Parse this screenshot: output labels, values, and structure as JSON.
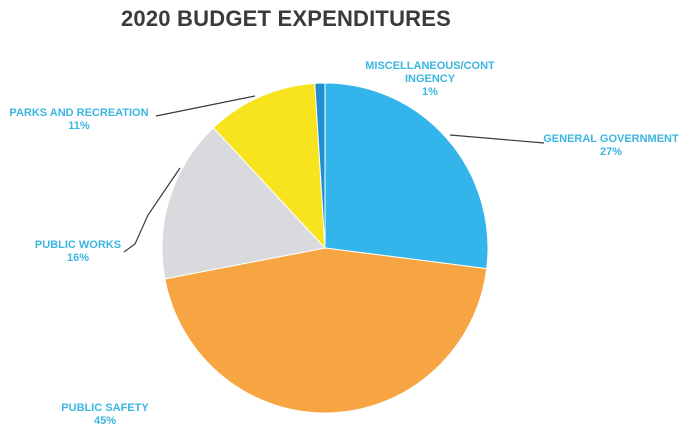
{
  "chart_data": {
    "type": "pie",
    "title": "2020 BUDGET EXPENDITURES",
    "label_color": "#3bb6e0",
    "slices": [
      {
        "name": "GENERAL GOVERNMENT",
        "value": 27,
        "value_label": "27%",
        "color": "#33b4ea"
      },
      {
        "name": "PUBLIC SAFETY",
        "value": 45,
        "value_label": "45%",
        "color": "#f7a542"
      },
      {
        "name": "PUBLIC WORKS",
        "value": 16,
        "value_label": "16%",
        "color": "#d9dadd"
      },
      {
        "name": "PARKS AND RECREATION",
        "value": 11,
        "value_label": "11%",
        "color": "#f7e31e"
      },
      {
        "name": "MISCELLANEOUS/CONTINGENCY",
        "display_lines": [
          "MISCELLANEOUS/CONT",
          "INGENCY"
        ],
        "value": 1,
        "value_label": "1%",
        "color": "#1f8fd0"
      }
    ]
  }
}
